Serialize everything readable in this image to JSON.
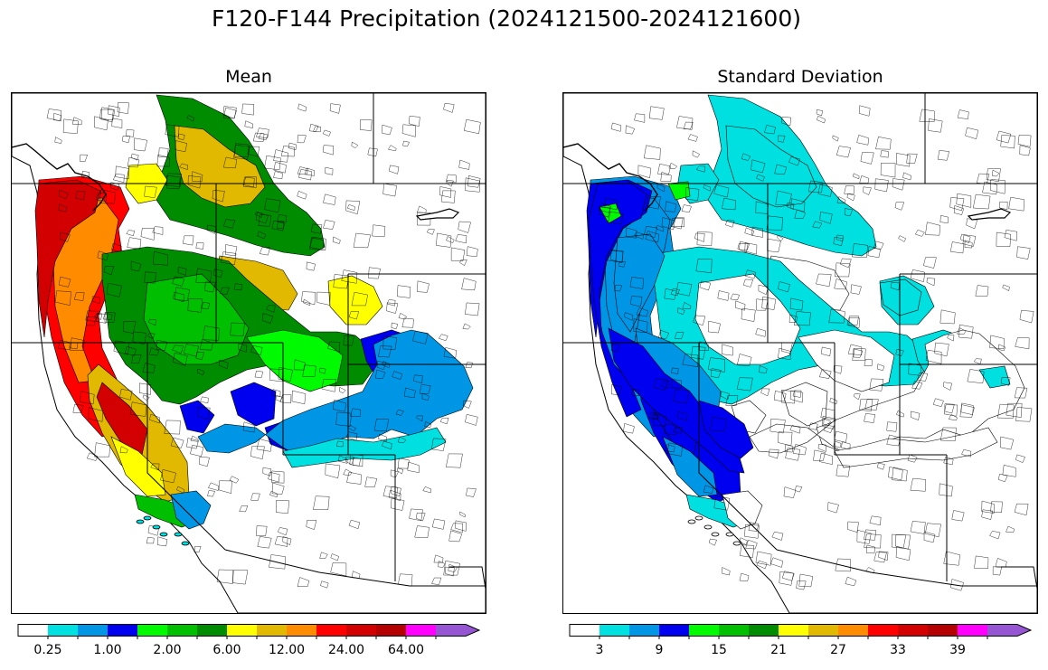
{
  "figure_title": "F120-F144 Precipitation (2024121500-2024121600)",
  "colors": [
    "#ffffff",
    "#00e0e0",
    "#0096e6",
    "#0000f0",
    "#00fa00",
    "#00be00",
    "#008c00",
    "#ffff00",
    "#e1b900",
    "#ff8c00",
    "#ff0000",
    "#d20000",
    "#b40000",
    "#ff00ff",
    "#9655d2"
  ],
  "panels": [
    {
      "title": "Mean",
      "colorbar": {
        "labels": [
          {
            "text": "0.25",
            "bin": 1
          },
          {
            "text": "1.00",
            "bin": 3
          },
          {
            "text": "2.00",
            "bin": 5
          },
          {
            "text": "6.00",
            "bin": 7
          },
          {
            "text": "12.00",
            "bin": 9
          },
          {
            "text": "24.00",
            "bin": 11
          },
          {
            "text": "64.00",
            "bin": 13
          }
        ]
      }
    },
    {
      "title": "Standard Deviation",
      "colorbar": {
        "labels": [
          {
            "text": "3",
            "bin": 1
          },
          {
            "text": "9",
            "bin": 3
          },
          {
            "text": "15",
            "bin": 5
          },
          {
            "text": "21",
            "bin": 7
          },
          {
            "text": "27",
            "bin": 9
          },
          {
            "text": "33",
            "bin": 11
          },
          {
            "text": "39",
            "bin": 13
          }
        ]
      }
    }
  ]
}
